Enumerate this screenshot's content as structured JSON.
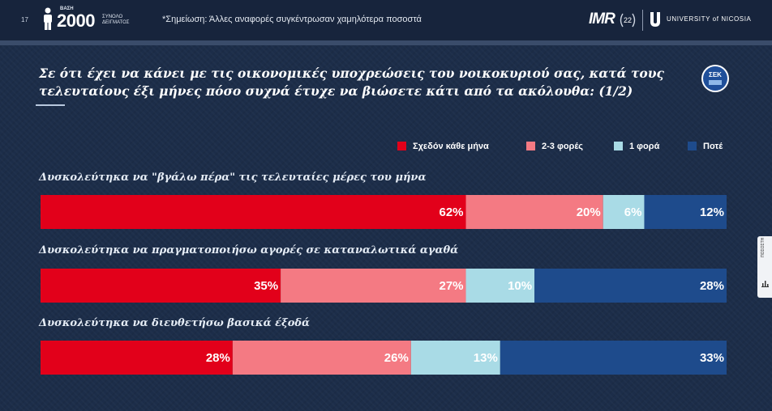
{
  "header": {
    "page_number": "17",
    "base_label": "ΒΑΣΗ",
    "base_value": "2000",
    "sample_label": "ΣΥΝΟΛΟ ΔΕΙΓΜΑΤΟΣ",
    "note": "*Σημείωση: Άλλες αναφορές συγκέντρωσαν χαμηλότερα ποσοστά",
    "imr_logo_text": "IMR",
    "anniversary": "22",
    "university": "UNIVERSITY of NICOSIA"
  },
  "sek_logo_text": "ΣΕΚ",
  "side_tab_text": "ΠΟΣΟΣΤΗ",
  "chart_data": {
    "type": "bar",
    "orientation": "horizontal",
    "stacked": true,
    "title": "Σε ότι έχει να κάνει με τις οικονομικές υποχρεώσεις του νοικοκυριού σας, κατά τους τελευταίους έξι μήνες πόσο συχνά έτυχε να βιώσετε κάτι από τα ακόλουθα: (1/2)",
    "categories": [
      "Δυσκολεύτηκα να \"βγάλω πέρα\" τις τελευταίες μέρες του μήνα",
      "Δυσκολεύτηκα να πραγματοποιήσω αγορές σε καταναλωτικά αγαθά",
      "Δυσκολεύτηκα να διευθετήσω βασικά έξοδά"
    ],
    "series": [
      {
        "name": "Σχεδόν κάθε μήνα",
        "color": "#e2001a",
        "values": [
          62,
          35,
          28
        ]
      },
      {
        "name": "2-3 φορές",
        "color": "#f47a83",
        "values": [
          20,
          27,
          26
        ]
      },
      {
        "name": "1 φορά",
        "color": "#a9dbe6",
        "values": [
          6,
          10,
          13
        ]
      },
      {
        "name": "Ποτέ",
        "color": "#1e4b8c",
        "values": [
          12,
          28,
          33
        ]
      }
    ],
    "value_suffix": "%",
    "legend_position": "top-right"
  }
}
